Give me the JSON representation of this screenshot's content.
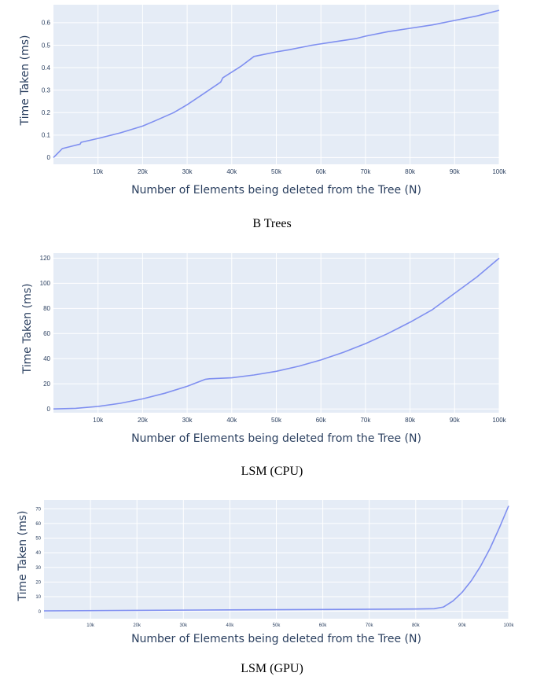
{
  "chart_data": [
    {
      "type": "line",
      "caption": "B Trees",
      "xlabel": "Number of Elements being deleted from the Tree (N)",
      "ylabel": "Time Taken (ms)",
      "xlim": [
        0,
        100000
      ],
      "ylim": [
        -0.03,
        0.68
      ],
      "xticks": [
        10000,
        20000,
        30000,
        40000,
        50000,
        60000,
        70000,
        80000,
        90000,
        100000
      ],
      "xticklabels": [
        "10k",
        "20k",
        "30k",
        "40k",
        "50k",
        "60k",
        "70k",
        "80k",
        "90k",
        "100k"
      ],
      "yticks": [
        0,
        0.1,
        0.2,
        0.3,
        0.4,
        0.5,
        0.6
      ],
      "yticklabels": [
        "0",
        "0.1",
        "0.2",
        "0.3",
        "0.4",
        "0.5",
        "0.6"
      ],
      "grid": true,
      "series": [
        {
          "x": [
            0,
            1000,
            2000,
            4000,
            6000,
            6200,
            10000,
            15000,
            20000,
            23000,
            27000,
            30000,
            33000,
            37500,
            38000,
            42000,
            45000,
            50000,
            53000,
            58000,
            63000,
            68000,
            70000,
            75000,
            80000,
            85000,
            90000,
            95000,
            100000
          ],
          "y": [
            0,
            0.02,
            0.04,
            0.05,
            0.06,
            0.068,
            0.085,
            0.11,
            0.14,
            0.165,
            0.2,
            0.235,
            0.275,
            0.335,
            0.355,
            0.405,
            0.45,
            0.47,
            0.48,
            0.5,
            0.515,
            0.53,
            0.54,
            0.56,
            0.575,
            0.59,
            0.61,
            0.63,
            0.655
          ]
        }
      ]
    },
    {
      "type": "line",
      "caption": "LSM (CPU)",
      "xlabel": "Number of Elements being deleted from the Tree (N)",
      "ylabel": "Time Taken (ms)",
      "xlim": [
        0,
        100000
      ],
      "ylim": [
        -3,
        124
      ],
      "xticks": [
        10000,
        20000,
        30000,
        40000,
        50000,
        60000,
        70000,
        80000,
        90000,
        100000
      ],
      "xticklabels": [
        "10k",
        "20k",
        "30k",
        "40k",
        "50k",
        "60k",
        "70k",
        "80k",
        "90k",
        "100k"
      ],
      "yticks": [
        0,
        20,
        40,
        60,
        80,
        100,
        120
      ],
      "yticklabels": [
        "0",
        "20",
        "40",
        "60",
        "80",
        "100",
        "120"
      ],
      "grid": true,
      "series": [
        {
          "x": [
            0,
            5000,
            10000,
            15000,
            20000,
            25000,
            30000,
            34000,
            35000,
            40000,
            45000,
            50000,
            55000,
            60000,
            65000,
            70000,
            75000,
            80000,
            85000,
            90000,
            95000,
            100000
          ],
          "y": [
            0,
            0.5,
            2,
            4.5,
            8,
            12.5,
            18,
            23.5,
            24,
            24.8,
            27,
            30,
            34,
            39,
            45,
            52,
            60,
            69,
            79,
            92,
            105,
            120
          ]
        }
      ]
    },
    {
      "type": "line",
      "caption": "LSM (GPU)",
      "xlabel": "Number of Elements being deleted from the Tree (N)",
      "ylabel": "Time Taken (ms)",
      "xlim": [
        0,
        100000
      ],
      "ylim": [
        -5,
        76
      ],
      "xticks": [
        10000,
        20000,
        30000,
        40000,
        50000,
        60000,
        70000,
        80000,
        90000,
        100000
      ],
      "xticklabels": [
        "10k",
        "20k",
        "30k",
        "40k",
        "50k",
        "60k",
        "70k",
        "80k",
        "90k",
        "100k"
      ],
      "yticks": [
        0,
        10,
        20,
        30,
        40,
        50,
        60,
        70
      ],
      "yticklabels": [
        "0",
        "10",
        "20",
        "30",
        "40",
        "50",
        "60",
        "70"
      ],
      "grid": true,
      "series": [
        {
          "x": [
            0,
            20000,
            40000,
            60000,
            80000,
            84000,
            86000,
            88000,
            90000,
            92000,
            94000,
            96000,
            98000,
            100000
          ],
          "y": [
            0.3,
            0.7,
            1,
            1.3,
            1.6,
            1.8,
            3,
            7,
            13,
            21,
            31,
            43,
            57,
            72
          ]
        }
      ]
    }
  ]
}
